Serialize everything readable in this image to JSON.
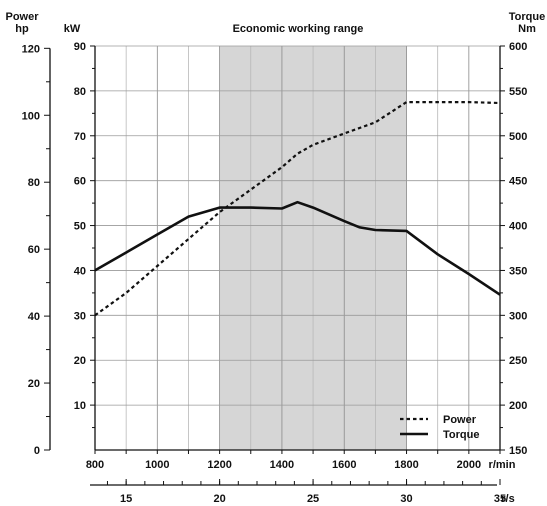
{
  "chart_data": {
    "type": "line",
    "title": "Economic working range",
    "band": {
      "x_from": 1200,
      "x_to": 1800,
      "color": "#d6d6d6"
    },
    "x": {
      "label": "r/min",
      "range": [
        800,
        2100
      ],
      "ticks": [
        800,
        1000,
        1200,
        1400,
        1600,
        1800,
        2000
      ]
    },
    "x2": {
      "label": "r/s",
      "ticks": [
        15,
        20,
        25,
        30,
        35
      ]
    },
    "y_left_outer": {
      "label_line1": "Power",
      "label_line2": "hp",
      "ticks": [
        0,
        20,
        40,
        60,
        80,
        100,
        120
      ]
    },
    "y_left_inner": {
      "label": "kW",
      "range": [
        0,
        90
      ],
      "ticks": [
        10,
        20,
        30,
        40,
        50,
        60,
        70,
        80,
        90
      ]
    },
    "y_right": {
      "label_line1": "Torque",
      "label_line2": "Nm",
      "range": [
        150,
        600
      ],
      "ticks": [
        150,
        200,
        250,
        300,
        350,
        400,
        450,
        500,
        550,
        600
      ]
    },
    "series": [
      {
        "name": "Power",
        "axis": "kW",
        "style": "dashed",
        "color": "#111111",
        "x": [
          800,
          900,
          1000,
          1100,
          1200,
          1300,
          1400,
          1450,
          1500,
          1600,
          1700,
          1800,
          1900,
          2000,
          2100
        ],
        "y": [
          30,
          35,
          41,
          47,
          53,
          58,
          63,
          66,
          68,
          70.5,
          73,
          77.5,
          77.5,
          77.5,
          77.3
        ]
      },
      {
        "name": "Torque",
        "axis": "Nm",
        "style": "solid",
        "color": "#111111",
        "x": [
          800,
          900,
          1000,
          1100,
          1200,
          1300,
          1400,
          1450,
          1500,
          1600,
          1650,
          1700,
          1800,
          1900,
          2000,
          2100
        ],
        "y": [
          350,
          370,
          390,
          410,
          420,
          420,
          419,
          426,
          420,
          405,
          398,
          395,
          394,
          368,
          346,
          323
        ]
      }
    ],
    "legend": {
      "position": "bottom-right"
    },
    "grid": true
  }
}
